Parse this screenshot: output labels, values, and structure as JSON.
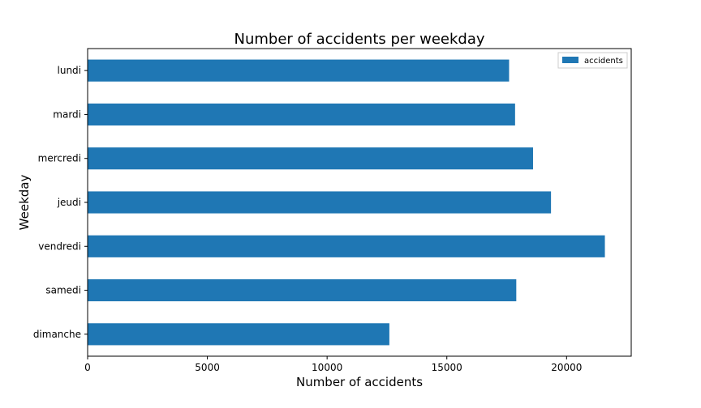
{
  "chart_data": {
    "type": "bar",
    "orientation": "horizontal",
    "title": "Number of accidents per weekday",
    "xlabel": "Number of accidents",
    "ylabel": "Weekday",
    "categories": [
      "lundi",
      "mardi",
      "mercredi",
      "jeudi",
      "vendredi",
      "samedi",
      "dimanche"
    ],
    "series": [
      {
        "name": "accidents",
        "color": "#1f77b4",
        "values": [
          17600,
          17850,
          18600,
          19350,
          21600,
          17900,
          12600
        ]
      }
    ],
    "xlim": [
      0,
      22700
    ],
    "xticks": [
      0,
      5000,
      10000,
      15000,
      20000
    ],
    "xtick_labels": [
      "0",
      "5000",
      "10000",
      "15000",
      "20000"
    ],
    "grid": false,
    "legend_position": "top-right"
  }
}
